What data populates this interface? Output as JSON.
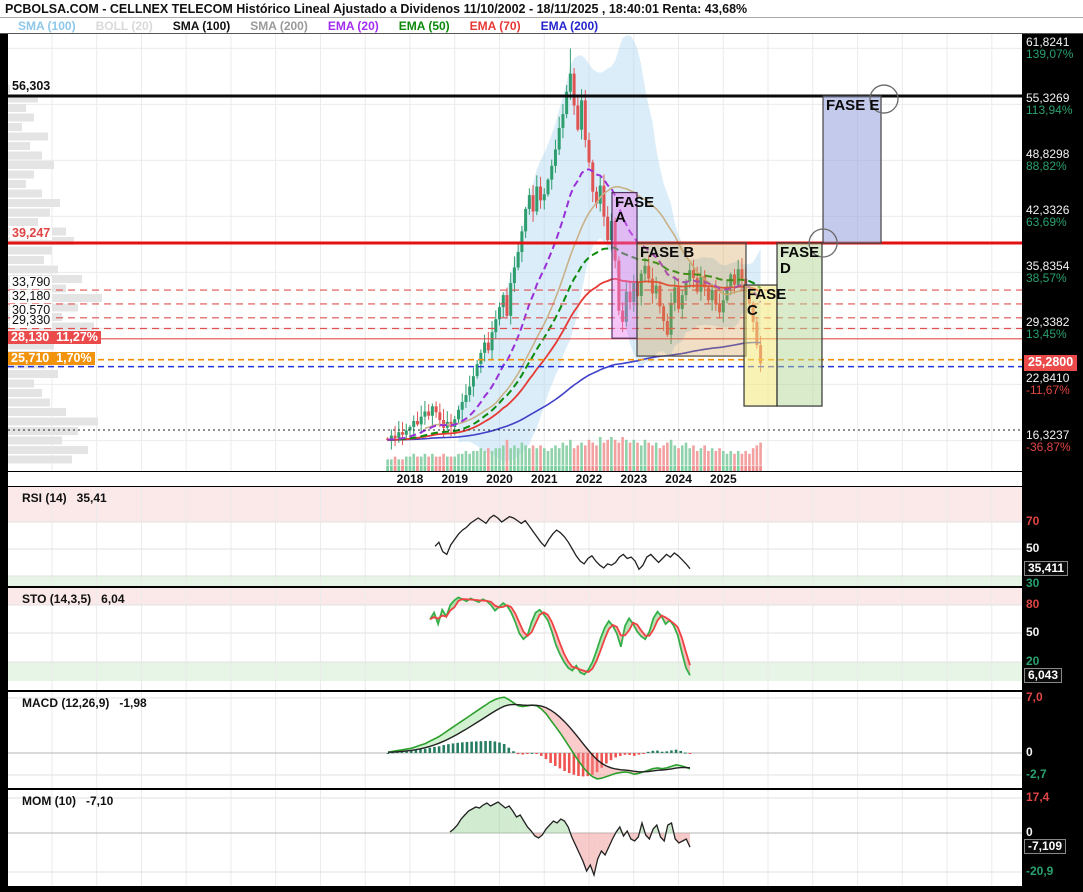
{
  "title": "PCBOLSA.COM - CELLNEX TELECOM Histórico Lineal Ajustado a Dividenos 11/10/2002 - 18/11/2025 , 18:40:01 Renta: 43,68%",
  "legend": [
    {
      "label": "SMA (100)",
      "color": "#8fc7ea"
    },
    {
      "label": "BOLL (20)",
      "color": "#d9d9d9"
    },
    {
      "label": "SMA (100)",
      "color": "#111111"
    },
    {
      "label": "SMA (200)",
      "color": "#9a9a9a"
    },
    {
      "label": "EMA (20)",
      "color": "#a32cf0"
    },
    {
      "label": "EMA (50)",
      "color": "#0b8a0b"
    },
    {
      "label": "EMA (70)",
      "color": "#e53935"
    },
    {
      "label": "EMA (200)",
      "color": "#2525cc"
    }
  ],
  "chart_data": {
    "type": "candlestick",
    "x_axis_years": [
      "2018",
      "2019",
      "2020",
      "2021",
      "2022",
      "2023",
      "2024",
      "2025"
    ],
    "monthly_closes": [
      16.4,
      16.9,
      16.6,
      17.3,
      17.0,
      17.5,
      17.9,
      18.6,
      18.2,
      19.1,
      19.7,
      19.2,
      20.3,
      19.6,
      18.7,
      17.8,
      18.5,
      17.9,
      18.8,
      19.9,
      20.8,
      21.6,
      22.6,
      23.8,
      25.2,
      26.5,
      27.7,
      26.8,
      28.9,
      30.4,
      31.8,
      33.2,
      30.8,
      34.6,
      36.4,
      38.2,
      40.6,
      43.2,
      44.8,
      42.9,
      45.8,
      44.2,
      44.9,
      46.6,
      48.2,
      50.1,
      52.6,
      54.2,
      56.8,
      58.9,
      55.2,
      52.4,
      55.8,
      51.2,
      48.6,
      45.2,
      43.8,
      45.9,
      42.3,
      39.6,
      41.8,
      37.2,
      31.4,
      30.1,
      33.6,
      32.4,
      34.6,
      33.1,
      35.7,
      36.6,
      35.1,
      33.4,
      34.3,
      31.9,
      30.2,
      28.6,
      32.3,
      34.1,
      31.6,
      33.2,
      34.8,
      36.1,
      35.2,
      33.6,
      35.4,
      34.1,
      32.6,
      33.8,
      32.1,
      31.2,
      32.6,
      34.2,
      35.6,
      34.4,
      36.2,
      35.1,
      33.6,
      32.2,
      30.1,
      27.4,
      25.28
    ],
    "volumes": [
      2,
      2,
      3,
      2,
      2,
      3,
      3,
      4,
      3,
      3,
      4,
      3,
      4,
      3,
      3,
      4,
      3,
      3,
      3,
      4,
      4,
      5,
      4,
      5,
      5,
      6,
      5,
      6,
      5,
      6,
      6,
      7,
      9,
      6,
      7,
      6,
      8,
      7,
      6,
      7,
      6,
      7,
      6,
      5,
      6,
      7,
      6,
      8,
      7,
      9,
      6,
      7,
      8,
      7,
      9,
      8,
      7,
      10,
      8,
      9,
      10,
      9,
      8,
      10,
      9,
      8,
      9,
      8,
      7,
      9,
      8,
      7,
      8,
      6,
      7,
      8,
      9,
      7,
      6,
      7,
      8,
      6,
      7,
      5,
      6,
      7,
      5,
      6,
      5,
      6,
      5,
      4,
      5,
      4,
      5,
      4,
      5,
      4,
      6,
      7,
      8
    ],
    "volume_profile_widths": [
      38,
      30,
      18,
      26,
      14,
      40,
      22,
      34,
      46,
      26,
      18,
      34,
      52,
      42,
      30,
      58,
      66,
      44,
      36,
      50,
      74,
      58,
      94,
      70,
      54,
      86,
      62,
      46,
      30,
      38,
      50,
      26,
      34,
      42,
      58,
      90,
      70,
      54,
      80,
      64
    ],
    "levels": [
      {
        "label": "56,303",
        "pct": null,
        "price": 56.303,
        "style": "black-solid"
      },
      {
        "label": "39,247",
        "pct": null,
        "price": 39.247,
        "style": "red-solid"
      },
      {
        "label": "33,790",
        "pct": null,
        "price": 33.79,
        "style": "red-dashed"
      },
      {
        "label": "32,180",
        "pct": null,
        "price": 32.18,
        "style": "red-dashed"
      },
      {
        "label": "30,570",
        "pct": null,
        "price": 30.57,
        "style": "red-dashed"
      },
      {
        "label": "29,330",
        "pct": null,
        "price": 29.33,
        "style": "red-dashed"
      },
      {
        "label": "28,130",
        "pct": "11,27%",
        "price": 28.13,
        "style": "red-badge"
      },
      {
        "label": "25,710",
        "pct": "1,70%",
        "price": 25.71,
        "style": "orange-badge"
      },
      {
        "label": null,
        "pct": null,
        "price": 24.9,
        "style": "blue-dashed"
      },
      {
        "label": null,
        "pct": null,
        "price": 17.55,
        "style": "black-dotted"
      }
    ],
    "right_axis": [
      {
        "price": "61,8241",
        "value": 61.8241,
        "pct": "139,07%",
        "dir": "up"
      },
      {
        "price": "55,3269",
        "value": 55.3269,
        "pct": "113,94%",
        "dir": "up"
      },
      {
        "price": "48,8298",
        "value": 48.8298,
        "pct": "88,82%",
        "dir": "up"
      },
      {
        "price": "42,3326",
        "value": 42.3326,
        "pct": "63,69%",
        "dir": "up"
      },
      {
        "price": "35,8354",
        "value": 35.8354,
        "pct": "38,57%",
        "dir": "up"
      },
      {
        "price": "29,3382",
        "value": 29.3382,
        "pct": "13,45%",
        "dir": "up"
      },
      {
        "price": "22,8410",
        "value": 22.841,
        "pct": "-11,67%",
        "dir": "down"
      },
      {
        "price": "16,3237",
        "value": 16.3237,
        "pct": "-36,87%",
        "dir": "down"
      }
    ],
    "last_price": {
      "text": "25,2800",
      "value": 25.28
    },
    "phases": [
      {
        "label": "FASE A",
        "wrap": true,
        "t1": 2022.513,
        "t2": 2023.072,
        "p1": 45.1,
        "p2": 28.2,
        "fill": "rgba(230,120,235,0.42)",
        "border": "#503060"
      },
      {
        "label": "FASE B",
        "wrap": false,
        "t1": 2023.072,
        "t2": 2025.507,
        "p1": 39.247,
        "p2": 26.13,
        "fill": "rgba(205,150,60,0.30)",
        "border": "#444444"
      },
      {
        "label": "FASE C",
        "wrap": true,
        "t1": 2025.463,
        "t2": 2026.2,
        "p1": 34.37,
        "p2": 20.33,
        "fill": "rgba(244,232,120,0.55)",
        "border": "#333333"
      },
      {
        "label": "FASE D",
        "wrap": true,
        "t1": 2026.2,
        "t2": 2027.205,
        "p1": 39.247,
        "p2": 20.33,
        "fill": "rgba(180,215,150,0.50)",
        "border": "#333333"
      },
      {
        "label": "FASE E",
        "wrap": false,
        "t1": 2027.228,
        "t2": 2028.524,
        "p1": 56.303,
        "p2": 39.247,
        "fill": "rgba(160,170,225,0.62)",
        "border": "#444444"
      }
    ],
    "phase_circles": [
      {
        "t": 2028.59,
        "price": 55.95
      },
      {
        "t": 2027.23,
        "price": 39.247
      }
    ],
    "indicators": {
      "rsi": {
        "label": "RSI (14)",
        "value": "35,41",
        "last": "35,411",
        "axis_labels": [
          "70",
          "50",
          "30"
        ],
        "upper_band": 70,
        "lower_band": 30,
        "series": [
          52,
          55,
          48,
          46,
          53,
          57,
          61,
          64,
          66,
          69,
          71,
          73,
          71,
          69,
          73,
          75,
          73,
          70,
          72,
          74,
          73,
          71,
          69,
          71,
          67,
          63,
          59,
          55,
          52,
          57,
          61,
          64,
          62,
          59,
          55,
          50,
          45,
          41,
          39,
          43,
          45,
          41,
          38,
          36,
          39,
          38,
          40,
          44,
          46,
          43,
          44,
          41,
          35,
          38,
          44,
          46,
          43,
          40,
          43,
          46,
          44,
          47,
          45,
          42,
          39,
          35.4
        ]
      },
      "sto": {
        "label": "STO (14,3,5)",
        "value": "6,04",
        "last": "6,043",
        "axis_labels": [
          "80",
          "50",
          "20"
        ],
        "k_series": [
          65,
          72,
          60,
          75,
          68,
          80,
          85,
          88,
          86,
          84,
          87,
          85,
          83,
          86,
          84,
          80,
          74,
          78,
          82,
          79,
          72,
          62,
          50,
          44,
          48,
          62,
          72,
          75,
          70,
          64,
          52,
          38,
          28,
          20,
          14,
          11,
          16,
          9,
          7,
          12,
          20,
          32,
          45,
          56,
          63,
          58,
          50,
          36,
          58,
          66,
          60,
          52,
          47,
          44,
          52,
          66,
          73,
          68,
          60,
          64,
          58,
          48,
          30,
          14,
          6
        ]
      },
      "macd": {
        "label": "MACD (12,26,9)",
        "value": "-1,98",
        "axis_labels": [
          "7,0",
          "0",
          "-2,7"
        ],
        "macd_series": [
          0.1,
          0.2,
          0.3,
          0.4,
          0.5,
          0.6,
          0.8,
          1.0,
          1.2,
          1.5,
          1.8,
          2.1,
          2.5,
          2.9,
          3.3,
          3.7,
          4.1,
          4.5,
          4.9,
          5.3,
          5.7,
          6.1,
          6.5,
          6.8,
          7.0,
          7.1,
          6.8,
          6.4,
          6.0,
          5.9,
          6.0,
          6.1,
          6.0,
          5.6,
          5.0,
          4.2,
          3.4,
          2.6,
          1.7,
          0.8,
          -0.1,
          -1.0,
          -1.8,
          -2.5,
          -3.0,
          -3.3,
          -3.2,
          -3.0,
          -2.8,
          -2.6,
          -2.5,
          -2.4,
          -2.5,
          -2.7,
          -2.6,
          -2.4,
          -2.2,
          -2.0,
          -1.9,
          -2.0,
          -1.9,
          -1.7,
          -1.5,
          -1.6,
          -1.8,
          -2.0
        ]
      },
      "mom": {
        "label": "MOM (10)",
        "value": "-7,10",
        "last": "-7,109",
        "axis_labels": [
          "17,4",
          "0",
          "-20,9"
        ],
        "series": [
          0.5,
          2,
          4,
          7,
          9,
          11,
          12,
          13,
          12.5,
          14,
          15,
          13.5,
          14.5,
          15.5,
          14,
          12.5,
          13.5,
          11,
          8,
          9,
          6,
          3,
          1,
          -1.5,
          -2.5,
          -1,
          2,
          4,
          6,
          5,
          7,
          6,
          3,
          -2,
          -6,
          -10,
          -14,
          -19,
          -16,
          -21,
          -13,
          -9,
          -11,
          -7,
          -3,
          0.5,
          3,
          -1.5,
          1,
          -3,
          -4,
          -2,
          5,
          -1,
          -3,
          2,
          4,
          -2,
          -4,
          4,
          5,
          -3,
          -5,
          -4,
          -3,
          -7.1
        ]
      }
    }
  }
}
